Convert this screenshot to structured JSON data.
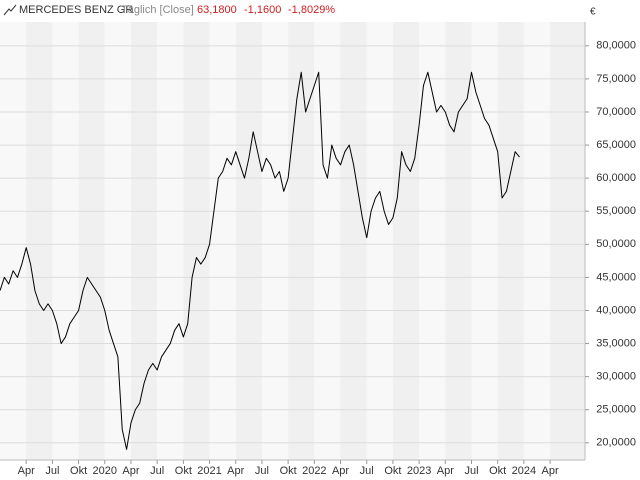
{
  "chart_data": {
    "type": "line",
    "title": "MERCEDES BENZ GR",
    "subtitle": "Täglich [Close]",
    "last": "63,1800",
    "change": "-1,1600",
    "change_pct": "-1,8029%",
    "y_unit": "€",
    "color": "#000000",
    "grid": true,
    "categories": [
      null,
      null,
      null,
      null,
      null,
      null,
      "Apr",
      null,
      null,
      null,
      null,
      null,
      "Jul",
      null,
      null,
      null,
      null,
      null,
      "Okt",
      null,
      null,
      null,
      null,
      null,
      "2020",
      null,
      null,
      null,
      null,
      null,
      "Apr",
      null,
      null,
      null,
      null,
      null,
      "Jul",
      null,
      null,
      null,
      null,
      null,
      "Okt",
      null,
      null,
      null,
      null,
      null,
      "2021",
      null,
      null,
      null,
      null,
      null,
      "Apr",
      null,
      null,
      null,
      null,
      null,
      "Jul",
      null,
      null,
      null,
      null,
      null,
      "Okt",
      null,
      null,
      null,
      null,
      null,
      "2022",
      null,
      null,
      null,
      null,
      null,
      "Apr",
      null,
      null,
      null,
      null,
      null,
      "Jul",
      null,
      null,
      null,
      null,
      null,
      "Okt",
      null,
      null,
      null,
      null,
      null,
      "2023",
      null,
      null,
      null,
      null,
      null,
      "Apr",
      null,
      null,
      null,
      null,
      null,
      "Jul",
      null,
      null,
      null,
      null,
      null,
      "Okt",
      null,
      null,
      null,
      null,
      null,
      "2024",
      null,
      null,
      null,
      null,
      null,
      "Apr",
      null,
      null,
      null,
      null,
      null,
      null,
      null
    ],
    "values": [
      43,
      45,
      44,
      46,
      45,
      47,
      49.5,
      47,
      43,
      41,
      40,
      41,
      40,
      38,
      35,
      36,
      38,
      39,
      40,
      43,
      45,
      44,
      43,
      42,
      40,
      37,
      35,
      33,
      22,
      19,
      23,
      25,
      26,
      29,
      31,
      32,
      31,
      33,
      34,
      35,
      37,
      38,
      36,
      38,
      45,
      48,
      47,
      48,
      50,
      55,
      60,
      61,
      63,
      62,
      64,
      62,
      60,
      63,
      67,
      64,
      61,
      63,
      62,
      60,
      61,
      58,
      60,
      66,
      72,
      76,
      70,
      72,
      74,
      76,
      62,
      60,
      65,
      63,
      62,
      64,
      65,
      62,
      58,
      54,
      51,
      55,
      57,
      58,
      55,
      53,
      54,
      57,
      64,
      62,
      61,
      63,
      68,
      74,
      76,
      73,
      70,
      71,
      70,
      68,
      67,
      70,
      71,
      72,
      76,
      73,
      71,
      69,
      68,
      66,
      64,
      57,
      58,
      61,
      64,
      63.18,
      null,
      null,
      null,
      null,
      null,
      null,
      null,
      null,
      null,
      null,
      null,
      null,
      null,
      null
    ],
    "ylim": [
      17.4,
      83.6
    ],
    "yticks": [
      {
        "value": 20,
        "label": "20,0000"
      },
      {
        "value": 25,
        "label": "25,0000"
      },
      {
        "value": 30,
        "label": "30,0000"
      },
      {
        "value": 35,
        "label": "35,0000"
      },
      {
        "value": 40,
        "label": "40,0000"
      },
      {
        "value": 45,
        "label": "45,0000"
      },
      {
        "value": 50,
        "label": "50,0000"
      },
      {
        "value": 55,
        "label": "55,0000"
      },
      {
        "value": 60,
        "label": "60,0000"
      },
      {
        "value": 65,
        "label": "65,0000"
      },
      {
        "value": 70,
        "label": "70,0000"
      },
      {
        "value": 75,
        "label": "75,0000"
      },
      {
        "value": 80,
        "label": "80,0000"
      }
    ]
  }
}
